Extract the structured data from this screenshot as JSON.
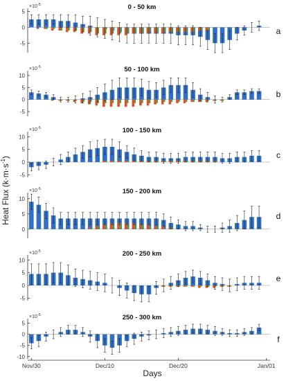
{
  "figure": {
    "ylabel_main": "Heat Flux (k",
    "ylabel_dot": "·",
    "ylabel_mid": "m",
    "ylabel_dot2": "·",
    "ylabel_s": "s",
    "ylabel_exp": "-1",
    "ylabel_close": ")",
    "xlabel": "Days",
    "exponent_base": "×10",
    "exponent_power": "-5"
  },
  "colors": {
    "blue": "#2f6fc4",
    "orange": "#d9542a",
    "green": "#5f9c2f",
    "errorbar": "#222222",
    "axis": "#333333"
  },
  "x_ticks": [
    "Nov/30",
    "Dec/10",
    "Dec/20",
    "Jan/01"
  ],
  "chart_data": [
    {
      "type": "bar",
      "title": "0 -   50 km",
      "panel_label": "a",
      "ylim": [
        -8,
        6
      ],
      "yticks": [
        -5,
        0,
        5
      ],
      "days": [
        0,
        1,
        2,
        3,
        4,
        5,
        6,
        7,
        8,
        9,
        10,
        11,
        12,
        13,
        14,
        15,
        16,
        17,
        18,
        19,
        20,
        21,
        22,
        23,
        24,
        25,
        26,
        27,
        28,
        29,
        30,
        31
      ],
      "series": [
        {
          "color_key": "blue",
          "values": [
            2.5,
            2.5,
            2.5,
            2.5,
            2,
            2,
            1.5,
            1,
            0.5,
            0,
            -0.5,
            -1,
            -1.5,
            -2,
            -2,
            -2,
            -2,
            -2,
            -2,
            -2,
            -2.5,
            -2.5,
            -2.5,
            -3,
            -4,
            -5,
            -5,
            -4,
            -2,
            -1,
            0,
            0.5
          ]
        },
        {
          "color_key": "orange",
          "values": [
            0,
            -0.5,
            -0.5,
            -1,
            -1,
            -1.5,
            -1.5,
            -2,
            -2,
            -2.5,
            -2.5,
            -2.5,
            -2.5,
            -2.5,
            -2,
            -2,
            -2,
            -2,
            -2,
            -1.5,
            -1.5,
            -1.5,
            -1.5,
            -1,
            -1,
            0,
            0,
            0,
            0,
            0,
            0,
            0
          ]
        },
        {
          "color_key": "green",
          "values": [
            0,
            0,
            -0.5,
            -0.5,
            -1,
            -1,
            -1,
            -1.5,
            -1.5,
            -2,
            -2,
            -2,
            -2,
            -2,
            -2,
            -2,
            -1.5,
            -1.5,
            -1.5,
            -1.5,
            -1.5,
            -1.5,
            -1.5,
            -1,
            -1,
            0,
            0,
            0,
            0,
            0,
            0,
            0
          ]
        }
      ],
      "errors": [
        1.5,
        1.5,
        1.5,
        1.5,
        2,
        2,
        2.5,
        2.5,
        3,
        3,
        3,
        3,
        3,
        3,
        3,
        3,
        3,
        3,
        3,
        3,
        3,
        3,
        3,
        3,
        3,
        3,
        3,
        3,
        2,
        1.5,
        1.5,
        1.5
      ]
    },
    {
      "type": "bar",
      "title": "50 - 100 km",
      "panel_label": "b",
      "ylim": [
        -7,
        12
      ],
      "yticks": [
        -5,
        0,
        5,
        10
      ],
      "days": [
        0,
        1,
        2,
        3,
        4,
        5,
        6,
        7,
        8,
        9,
        10,
        11,
        12,
        13,
        14,
        15,
        16,
        17,
        18,
        19,
        20,
        21,
        22,
        23,
        24,
        25,
        26,
        27,
        28,
        29,
        30,
        31
      ],
      "series": [
        {
          "color_key": "blue",
          "values": [
            3,
            2.5,
            2,
            1,
            0,
            0,
            0,
            0.5,
            1,
            2,
            3,
            4,
            5,
            5,
            5,
            5,
            4,
            4,
            5,
            6,
            6,
            6,
            4,
            2,
            1,
            0,
            0,
            1,
            3,
            3,
            3.5,
            3.5
          ]
        },
        {
          "color_key": "orange",
          "values": [
            0,
            0,
            0,
            -0.5,
            -0.5,
            -0.5,
            -1,
            -1.5,
            -2,
            -2.5,
            -3,
            -3,
            -3,
            -3,
            -3,
            -2.5,
            -2.5,
            -2,
            -2,
            -2,
            -1.5,
            -1.5,
            -1,
            -1,
            -1,
            -0.5,
            -0.5,
            0,
            0,
            0,
            0,
            0
          ]
        },
        {
          "color_key": "green",
          "values": [
            0,
            0,
            0,
            0,
            -0.5,
            -0.5,
            -0.5,
            -1,
            -1,
            -1.5,
            -1.5,
            -1.5,
            -1.5,
            -1.5,
            -1.5,
            -1.5,
            -1.5,
            -1.5,
            -1,
            -1,
            -1,
            -1,
            -1,
            -1,
            -0.5,
            -0.5,
            -0.5,
            0,
            0,
            0,
            0,
            0
          ]
        }
      ],
      "errors": [
        1,
        1,
        1,
        1,
        1,
        1,
        1.5,
        2,
        2.5,
        3,
        3.5,
        4,
        4,
        4,
        4,
        3.5,
        3.5,
        3,
        3,
        3,
        3,
        3,
        3,
        2.5,
        2,
        1.5,
        1,
        1,
        1,
        1,
        1,
        1
      ]
    },
    {
      "type": "bar",
      "title": "100 - 150 km",
      "panel_label": "c",
      "ylim": [
        -6,
        12
      ],
      "yticks": [
        -5,
        0,
        5,
        10
      ],
      "days": [
        0,
        1,
        2,
        3,
        4,
        5,
        6,
        7,
        8,
        9,
        10,
        11,
        12,
        13,
        14,
        15,
        16,
        17,
        18,
        19,
        20,
        21,
        22,
        23,
        24,
        25,
        26,
        27,
        28,
        29,
        30,
        31
      ],
      "series": [
        {
          "color_key": "blue",
          "values": [
            -2,
            -1.5,
            -1,
            0,
            1,
            2,
            3,
            4,
            5,
            5.5,
            6,
            6,
            5,
            4,
            3,
            2.5,
            2,
            2,
            1.5,
            1.5,
            1.5,
            2,
            2,
            2,
            2,
            2,
            1.5,
            1.5,
            2,
            2,
            2.5,
            2.5
          ]
        },
        {
          "color_key": "orange",
          "values": [
            0,
            0,
            0,
            0,
            0,
            0,
            0,
            0,
            0,
            0,
            0.5,
            0.5,
            0.5,
            0.5,
            0.5,
            0.5,
            0.5,
            0.5,
            0.5,
            0.5,
            0.5,
            0.5,
            0.5,
            0.5,
            0.5,
            0.5,
            0,
            0,
            0,
            0,
            0,
            0
          ]
        },
        {
          "color_key": "green",
          "values": [
            0,
            0,
            0,
            0,
            0,
            0,
            0,
            0,
            0,
            0,
            0.5,
            0.5,
            0.5,
            0.5,
            0.5,
            0.5,
            0.5,
            0.5,
            0.5,
            0.5,
            0.5,
            0.5,
            0.5,
            0.5,
            0.5,
            0.5,
            0,
            0,
            0,
            0,
            0,
            0
          ]
        }
      ],
      "errors": [
        1.5,
        1.5,
        1.5,
        1.5,
        2,
        2,
        2.5,
        2.5,
        3,
        3,
        3,
        3,
        3,
        2.5,
        2.5,
        2,
        2,
        2,
        2,
        2,
        2,
        2,
        2,
        2,
        2,
        2,
        2,
        2,
        2,
        2,
        2,
        2
      ]
    },
    {
      "type": "bar",
      "title": "150 - 200 km",
      "panel_label": "d",
      "ylim": [
        -3,
        12
      ],
      "yticks": [
        0,
        5,
        10
      ],
      "days": [
        0,
        1,
        2,
        3,
        4,
        5,
        6,
        7,
        8,
        9,
        10,
        11,
        12,
        13,
        14,
        15,
        16,
        17,
        18,
        19,
        20,
        21,
        22,
        23,
        24,
        25,
        26,
        27,
        28,
        29,
        30,
        31
      ],
      "series": [
        {
          "color_key": "blue",
          "values": [
            9,
            8,
            6,
            4.5,
            3.5,
            3.5,
            3.5,
            3.5,
            3.5,
            3.5,
            3.5,
            3.5,
            3.5,
            3.5,
            3.5,
            3.5,
            3.5,
            3.5,
            3,
            2,
            1.5,
            1,
            1,
            0.5,
            0,
            0,
            0.5,
            1,
            2,
            3,
            4,
            4
          ]
        },
        {
          "color_key": "orange",
          "values": [
            0,
            0,
            0,
            0,
            0,
            0,
            0,
            0,
            0.5,
            1,
            1.5,
            2,
            2,
            2,
            2,
            1.5,
            1.5,
            1,
            1,
            0.5,
            0,
            0,
            0,
            0,
            0,
            0,
            0,
            0,
            0,
            0,
            0,
            0
          ]
        },
        {
          "color_key": "green",
          "values": [
            0,
            0,
            0,
            0,
            0,
            0,
            0,
            0,
            0.5,
            1,
            1.5,
            1.5,
            2,
            1.5,
            1.5,
            1.5,
            1,
            1,
            0.5,
            0.5,
            0,
            0,
            0,
            0,
            0,
            0,
            0,
            0,
            0,
            0,
            0,
            0
          ]
        }
      ],
      "errors": [
        2.5,
        2.5,
        2.5,
        2.5,
        2,
        2,
        2,
        2,
        2,
        2,
        2,
        2,
        2,
        2,
        2,
        2,
        2,
        2,
        2,
        2,
        1.5,
        1.5,
        1.5,
        1,
        1,
        1,
        1.5,
        2,
        2.5,
        3,
        3.5,
        3.5
      ]
    },
    {
      "type": "bar",
      "title": "200 - 250 km",
      "panel_label": "e",
      "ylim": [
        -6,
        12
      ],
      "yticks": [
        -5,
        0,
        5,
        10
      ],
      "days": [
        0,
        1,
        2,
        3,
        4,
        5,
        6,
        7,
        8,
        9,
        10,
        11,
        12,
        13,
        14,
        15,
        16,
        17,
        18,
        19,
        20,
        21,
        22,
        23,
        24,
        25,
        26,
        27,
        28,
        29,
        30,
        31
      ],
      "series": [
        {
          "color_key": "blue",
          "values": [
            4.5,
            4.5,
            4.5,
            5,
            5,
            4,
            3,
            2.5,
            2,
            1.5,
            1,
            0,
            -1,
            -2,
            -3,
            -3.5,
            -3.5,
            -1,
            0,
            1,
            2,
            3,
            3.5,
            3,
            2,
            1,
            0.5,
            0,
            0.5,
            1,
            1,
            1
          ]
        },
        {
          "color_key": "orange",
          "values": [
            0,
            0,
            0,
            0,
            0,
            0,
            0,
            0,
            0,
            0,
            0,
            0,
            0,
            0,
            0,
            0,
            0,
            0,
            -0.5,
            -0.5,
            -0.5,
            -0.5,
            -0.5,
            -1,
            -1,
            -1,
            -0.5,
            -0.5,
            0,
            0,
            0,
            0
          ]
        },
        {
          "color_key": "green",
          "values": [
            0,
            0,
            0,
            0,
            0,
            0,
            0,
            0,
            0,
            0,
            0,
            0,
            0,
            0,
            0,
            0,
            0,
            0,
            -0.5,
            -0.5,
            -0.5,
            -0.5,
            -0.5,
            -0.5,
            -0.5,
            -0.5,
            -0.5,
            -0.5,
            0,
            0,
            0,
            0
          ]
        }
      ],
      "errors": [
        4,
        4,
        4,
        4,
        4,
        4,
        3.5,
        3.5,
        3.5,
        3.5,
        3.5,
        3,
        3,
        3,
        3,
        3,
        3,
        2.5,
        2.5,
        2.5,
        2.5,
        2.5,
        2.5,
        2.5,
        2.5,
        2.5,
        2.5,
        2.5,
        2.5,
        2.5,
        2.5,
        2.5
      ]
    },
    {
      "type": "bar",
      "title": "250 - 300 km",
      "panel_label": "f",
      "ylim": [
        -11,
        7
      ],
      "yticks": [
        -10,
        -5,
        0,
        5
      ],
      "days": [
        0,
        1,
        2,
        3,
        4,
        5,
        6,
        7,
        8,
        9,
        10,
        11,
        12,
        13,
        14,
        15,
        16,
        17,
        18,
        19,
        20,
        21,
        22,
        23,
        24,
        25,
        26,
        27,
        28,
        29,
        30,
        31
      ],
      "series": [
        {
          "color_key": "blue",
          "values": [
            -4,
            -3,
            -1,
            0,
            1,
            2,
            2,
            1,
            -1,
            -3,
            -5,
            -6,
            -5,
            -3,
            -2,
            -1,
            -0.5,
            0,
            0.5,
            1,
            1.5,
            2,
            2.5,
            2.5,
            2,
            1.5,
            1,
            0.5,
            0.5,
            1,
            1.5,
            3
          ]
        },
        {
          "color_key": "orange",
          "values": [
            0,
            0,
            0,
            0,
            0,
            0,
            0,
            0,
            0,
            0,
            0,
            0,
            0,
            0,
            0,
            0,
            0,
            0,
            0,
            0,
            0,
            0,
            0,
            0,
            0,
            0,
            0,
            0,
            0,
            0,
            0,
            0
          ]
        },
        {
          "color_key": "green",
          "values": [
            0,
            0,
            0,
            0,
            0,
            0,
            0,
            0,
            0,
            0,
            0,
            0,
            0,
            0,
            0,
            0,
            0,
            0,
            0,
            0,
            0,
            0,
            0,
            0,
            0,
            0,
            0,
            0,
            0,
            0,
            0,
            0
          ]
        }
      ],
      "errors": [
        2.5,
        2.5,
        2,
        2,
        2,
        2,
        2,
        2,
        2.5,
        3,
        3,
        3,
        3,
        2.5,
        2.5,
        2,
        2,
        2,
        2,
        2,
        2,
        2,
        2,
        2,
        2,
        2,
        1.5,
        1.5,
        1.5,
        1.5,
        1.5,
        1.5
      ]
    }
  ]
}
